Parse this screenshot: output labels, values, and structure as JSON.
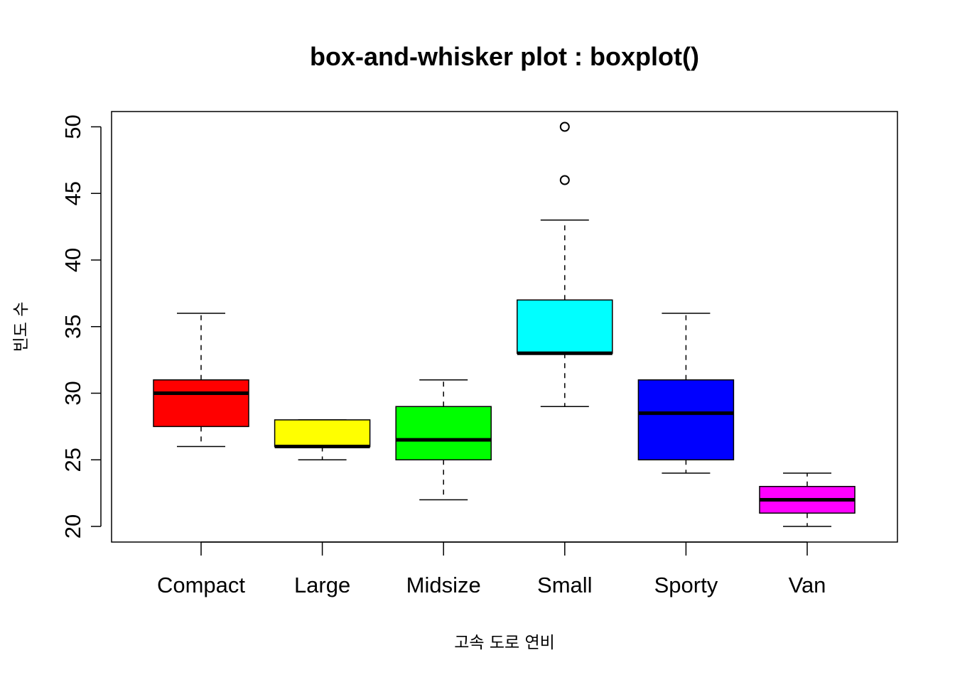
{
  "chart_data": {
    "type": "boxplot",
    "title": "box-and-whisker plot : boxplot()",
    "xlabel": "고속 도로 연비",
    "ylabel": "빈도 수",
    "ylim": [
      19,
      51
    ],
    "yticks": [
      20,
      25,
      30,
      35,
      40,
      45,
      50
    ],
    "grid": false,
    "categories": [
      "Compact",
      "Large",
      "Midsize",
      "Small",
      "Sporty",
      "Van"
    ],
    "boxes": [
      {
        "name": "Compact",
        "color": "#ff0000",
        "min": 26,
        "q1": 27.5,
        "median": 30,
        "q3": 31,
        "max": 36,
        "outliers": []
      },
      {
        "name": "Large",
        "color": "#ffff00",
        "min": 25,
        "q1": 26,
        "median": 26,
        "q3": 28,
        "max": 28,
        "outliers": []
      },
      {
        "name": "Midsize",
        "color": "#00ff00",
        "min": 22,
        "q1": 25,
        "median": 26.5,
        "q3": 29,
        "max": 31,
        "outliers": []
      },
      {
        "name": "Small",
        "color": "#00ffff",
        "min": 29,
        "q1": 33,
        "median": 33,
        "q3": 37,
        "max": 43,
        "outliers": [
          46,
          50
        ]
      },
      {
        "name": "Sporty",
        "color": "#0000ff",
        "min": 24,
        "q1": 25,
        "median": 28.5,
        "q3": 31,
        "max": 36,
        "outliers": []
      },
      {
        "name": "Van",
        "color": "#ff00ff",
        "min": 20,
        "q1": 21,
        "median": 22,
        "q3": 23,
        "max": 24,
        "outliers": []
      }
    ]
  }
}
